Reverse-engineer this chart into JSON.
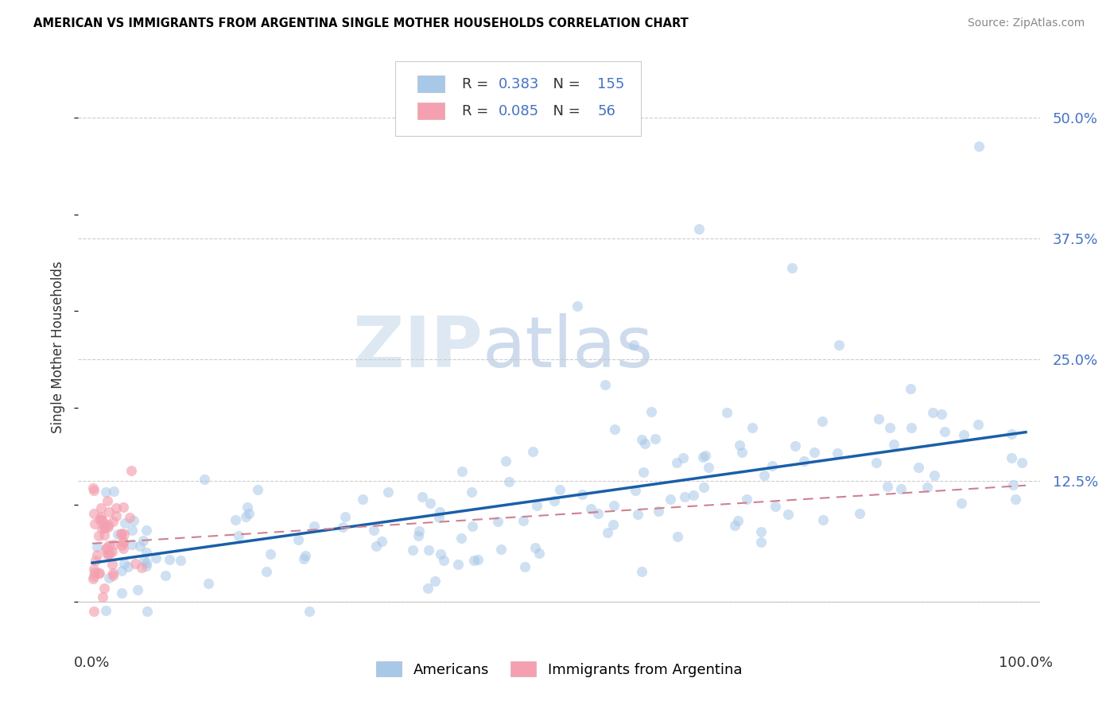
{
  "title": "AMERICAN VS IMMIGRANTS FROM ARGENTINA SINGLE MOTHER HOUSEHOLDS CORRELATION CHART",
  "source": "Source: ZipAtlas.com",
  "ylabel": "Single Mother Households",
  "r_american": 0.383,
  "n_american": 155,
  "r_argentina": 0.085,
  "n_argentina": 56,
  "color_american": "#a8c8e8",
  "color_argentina": "#f4a0b0",
  "color_american_line": "#1a5fa8",
  "color_argentina_line": "#d08090",
  "legend_label_american": "Americans",
  "legend_label_argentina": "Immigrants from Argentina",
  "grid_color": "#cccccc",
  "right_label_color": "#4472c4",
  "ytick_labels": [
    "",
    "12.5%",
    "25.0%",
    "37.5%",
    "50.0%"
  ],
  "ytick_values": [
    0.0,
    0.125,
    0.25,
    0.375,
    0.5
  ]
}
